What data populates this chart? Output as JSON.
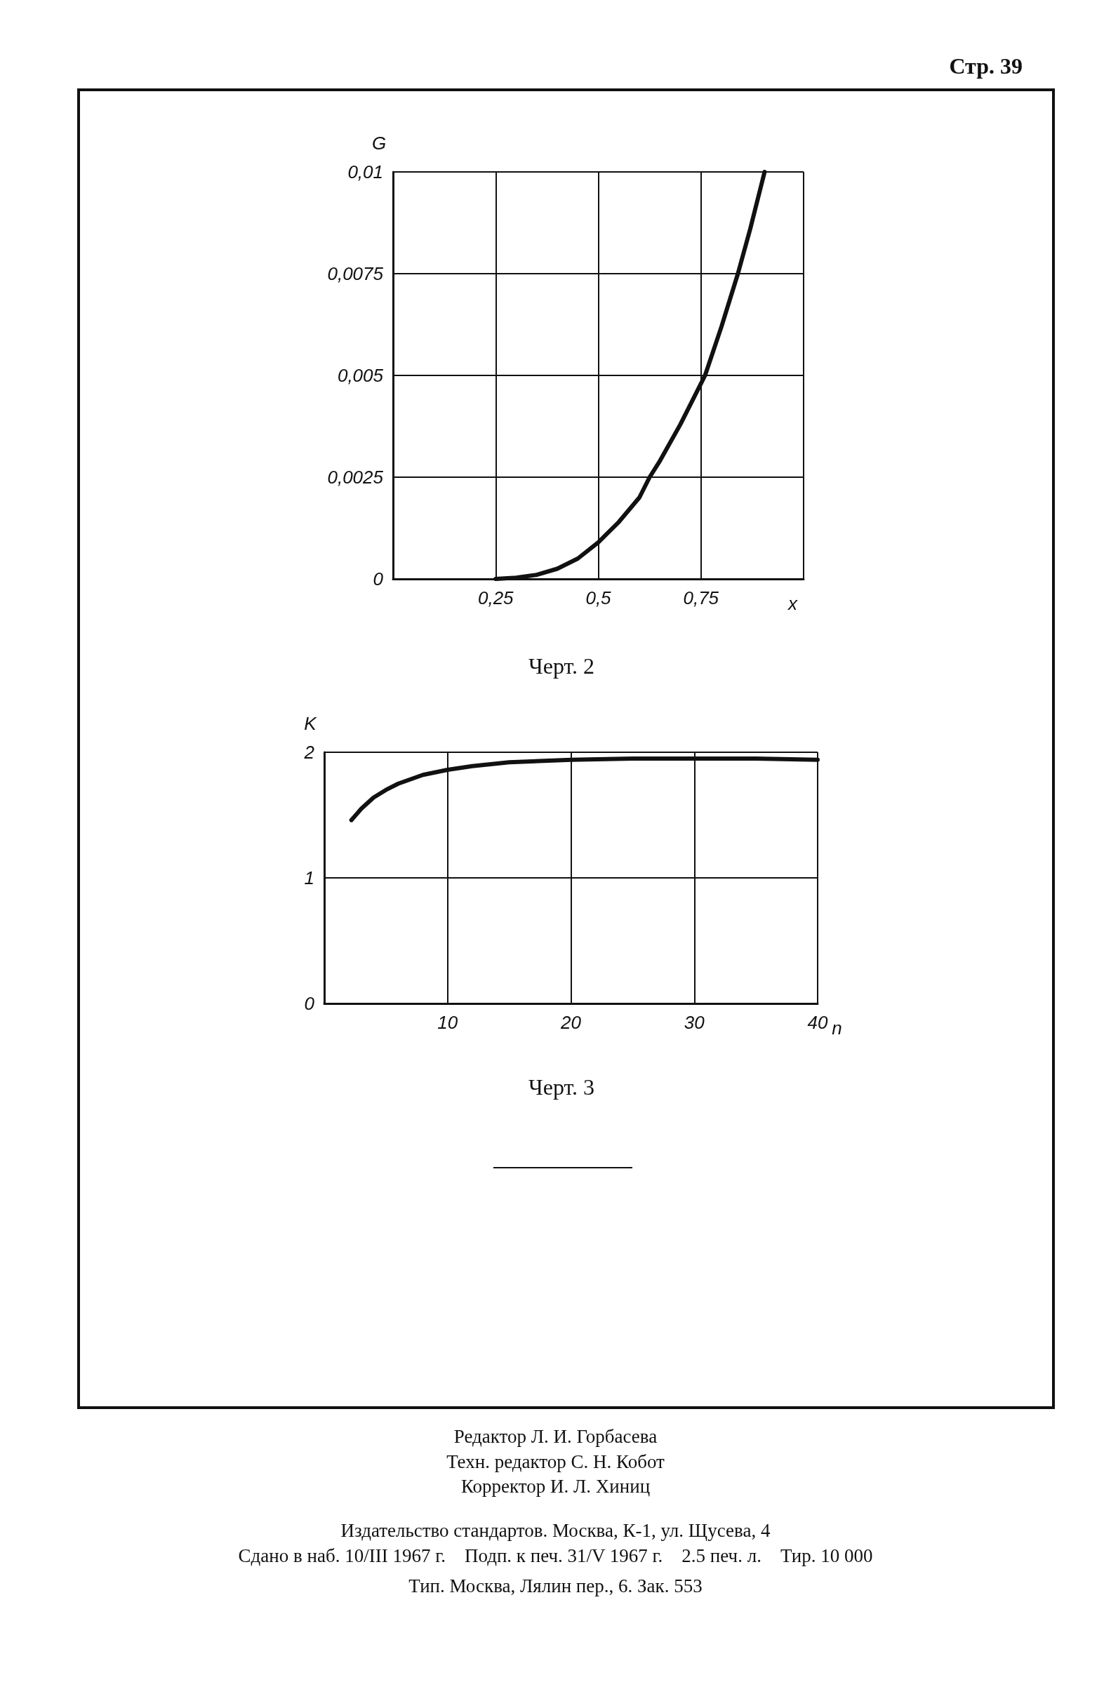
{
  "chart_data": [
    {
      "type": "line",
      "title": "Черт. 2",
      "xlabel": "x",
      "ylabel": "G",
      "annotations": [
        "Стр. 39"
      ],
      "color": "#111111",
      "grid": true,
      "line_style": "solid",
      "xlim": [
        0,
        1
      ],
      "xticks": [
        {
          "value": 0,
          "label": null
        },
        {
          "value": 0.25,
          "label": "0,25"
        },
        {
          "value": 0.5,
          "label": "0,5"
        },
        {
          "value": 0.75,
          "label": "0,75"
        },
        {
          "value": 1,
          "label": null
        }
      ],
      "ylim": [
        0,
        0.01
      ],
      "yticks": [
        {
          "value": 0,
          "label": "0"
        },
        {
          "value": 0.0025,
          "label": "0,0025"
        },
        {
          "value": 0.005,
          "label": "0,005"
        },
        {
          "value": 0.0075,
          "label": "0,0075"
        },
        {
          "value": 0.01,
          "label": "0,01"
        }
      ],
      "x": [
        0.25,
        0.3,
        0.35,
        0.4,
        0.45,
        0.5,
        0.55,
        0.6,
        0.625,
        0.65,
        0.7,
        0.75,
        0.76,
        0.8,
        0.84,
        0.87,
        0.905
      ],
      "values": [
        0,
        3e-05,
        0.0001,
        0.00025,
        0.0005,
        0.0009,
        0.0014,
        0.002,
        0.0025,
        0.0029,
        0.0038,
        0.0048,
        0.005,
        0.0062,
        0.0075,
        0.0086,
        0.01
      ]
    },
    {
      "type": "line",
      "title": "Черт. 3",
      "xlabel": "n",
      "ylabel": "K",
      "color": "#111111",
      "grid": true,
      "line_style": "solid",
      "annotations": [
        "Редактор Л. И. Горбасева",
        "Техн. редактор С. Н. Кобот",
        "Корректор И. Л. Хиниц",
        "Издательство стандартов. Москва, К-1, ул. Щусева, 4",
        "Сдано в наб. 10/III 1967 г.    Подп. к печ. 31/V 1967 г.    2.5 печ. л.    Тир. 10 000",
        "Тип. Москва, Лялин пер., 6. Зак. 553"
      ],
      "xlim": [
        0,
        40
      ],
      "xticks": [
        {
          "value": 0,
          "label": null
        },
        10,
        20,
        30,
        40
      ],
      "ylim": [
        0,
        2
      ],
      "yticks": [
        0,
        1,
        2
      ],
      "x": [
        2.2,
        3,
        4,
        5,
        6,
        8,
        10,
        12,
        15,
        20,
        25,
        30,
        35,
        40
      ],
      "values": [
        1.46,
        1.55,
        1.64,
        1.7,
        1.75,
        1.82,
        1.86,
        1.89,
        1.92,
        1.94,
        1.95,
        1.95,
        1.95,
        1.94
      ]
    }
  ]
}
